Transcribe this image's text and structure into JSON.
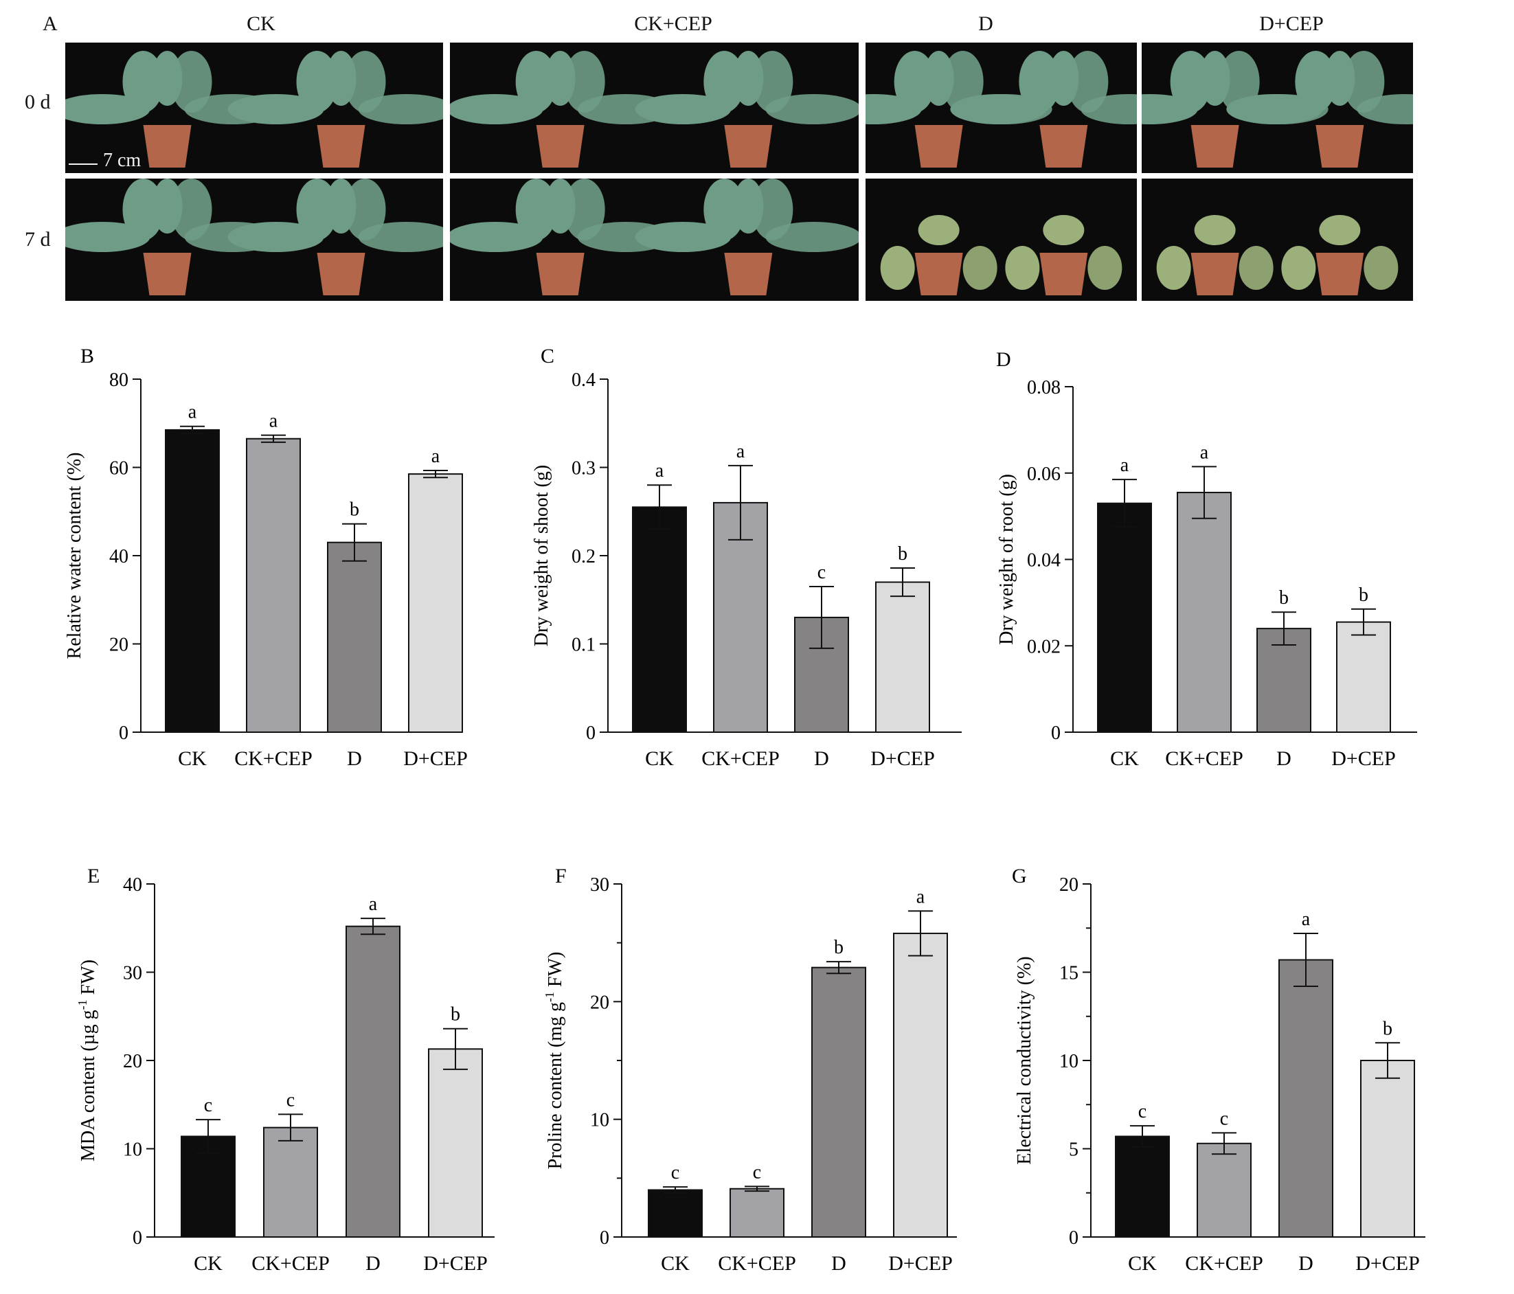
{
  "photos": {
    "panel_letter": "A",
    "groups": [
      "CK",
      "CK+CEP",
      "D",
      "D+CEP"
    ],
    "rows": [
      "0 d",
      "7 d"
    ],
    "scale_bar_label": "7 cm",
    "wilted": [
      [
        false,
        false,
        false,
        false
      ],
      [
        false,
        false,
        true,
        true
      ]
    ]
  },
  "colors": {
    "CK": "#0d0d0d",
    "CK+CEP": "#a3a2a6",
    "D": "#868385",
    "D+CEP": "#dcdcdc",
    "pot": "#b4664a",
    "leaf": "#6f9c86",
    "wilted_leaf": "#9bb07a",
    "photo_bg": "#0b0b0b"
  },
  "chart_data": [
    {
      "panel": "B",
      "type": "bar",
      "categories": [
        "CK",
        "CK+CEP",
        "D",
        "D+CEP"
      ],
      "values": [
        68.5,
        66.5,
        43,
        58.5
      ],
      "errors": [
        0.8,
        0.8,
        4.2,
        0.8
      ],
      "letters": [
        "a",
        "a",
        "b",
        "a"
      ],
      "ylabel": "Relative water content (%)",
      "ylim": [
        0,
        80
      ],
      "yticks": [
        "0",
        "20",
        "40",
        "60",
        "80"
      ],
      "minor_ticks": false
    },
    {
      "panel": "C",
      "type": "bar",
      "categories": [
        "CK",
        "CK+CEP",
        "D",
        "D+CEP"
      ],
      "values": [
        0.255,
        0.26,
        0.13,
        0.17
      ],
      "errors": [
        0.025,
        0.042,
        0.035,
        0.016
      ],
      "letters": [
        "a",
        "a",
        "c",
        "b"
      ],
      "ylabel": "Dry weight of shoot (g)",
      "ylim": [
        0,
        0.4
      ],
      "yticks": [
        "0",
        "0.1",
        "0.2",
        "0.3",
        "0.4"
      ],
      "minor_ticks": false
    },
    {
      "panel": "D",
      "type": "bar",
      "categories": [
        "CK",
        "CK+CEP",
        "D",
        "D+CEP"
      ],
      "values": [
        0.053,
        0.0555,
        0.024,
        0.0255
      ],
      "errors": [
        0.0055,
        0.006,
        0.0038,
        0.003
      ],
      "letters": [
        "a",
        "a",
        "b",
        "b"
      ],
      "ylabel": "Dry weight of root (g)",
      "ylim": [
        0,
        0.08
      ],
      "yticks": [
        "0",
        "0.02",
        "0.04",
        "0.06",
        "0.08"
      ],
      "minor_ticks": false
    },
    {
      "panel": "E",
      "type": "bar",
      "categories": [
        "CK",
        "CK+CEP",
        "D",
        "D+CEP"
      ],
      "values": [
        11.4,
        12.4,
        35.2,
        21.3
      ],
      "errors": [
        1.9,
        1.5,
        0.9,
        2.3
      ],
      "letters": [
        "c",
        "c",
        "a",
        "b"
      ],
      "ylabel": "MDA content (µg g-1 FW)",
      "ylabel_parts": {
        "pre": "MDA content (µg g",
        "sup": "-1",
        "post": " FW)"
      },
      "ylim": [
        0,
        40
      ],
      "yticks": [
        "0",
        "10",
        "20",
        "30",
        "40"
      ],
      "minor_ticks": false
    },
    {
      "panel": "F",
      "type": "bar",
      "categories": [
        "CK",
        "CK+CEP",
        "D",
        "D+CEP"
      ],
      "values": [
        4.0,
        4.1,
        22.9,
        25.8
      ],
      "errors": [
        0.25,
        0.2,
        0.5,
        1.9
      ],
      "letters": [
        "c",
        "c",
        "b",
        "a"
      ],
      "ylabel": "Proline content (mg g-1 FW)",
      "ylabel_parts": {
        "pre": "Proline  content (mg g",
        "sup": "-1",
        "post": " FW)"
      },
      "ylim": [
        0,
        30
      ],
      "yticks": [
        "0",
        "10",
        "20",
        "30"
      ],
      "minor_ticks": true
    },
    {
      "panel": "G",
      "type": "bar",
      "categories": [
        "CK",
        "CK+CEP",
        "D",
        "D+CEP"
      ],
      "values": [
        5.7,
        5.3,
        15.7,
        10.0
      ],
      "errors": [
        0.6,
        0.6,
        1.5,
        1.0
      ],
      "letters": [
        "c",
        "c",
        "a",
        "b"
      ],
      "ylabel": "Electrical conductivity (%)",
      "ylim": [
        0,
        20
      ],
      "yticks": [
        "0",
        "5",
        "10",
        "15",
        "20"
      ],
      "minor_ticks": true
    }
  ]
}
